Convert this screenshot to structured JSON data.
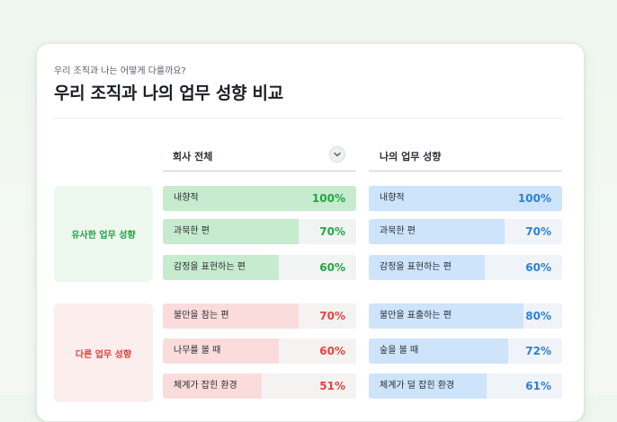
{
  "header": {
    "subtitle": "우리 조직과 나는 어떻게 다를까요?",
    "title": "우리 조직과 나의 업무 성향 비교"
  },
  "columns": {
    "company": "회사 전체",
    "mine": "나의 업무 성향"
  },
  "groups": {
    "similar": "유사한 업무 성향",
    "different": "다른 업무 성향"
  },
  "colors": {
    "green": "#22a546",
    "blue": "#2f7fd6",
    "red": "#e4443f"
  },
  "rows": {
    "similar_company": [
      {
        "label": "내향적",
        "pct": "100%",
        "value": 100
      },
      {
        "label": "과묵한 편",
        "pct": "70%",
        "value": 70
      },
      {
        "label": "감정을 표현하는 편",
        "pct": "60%",
        "value": 60
      }
    ],
    "similar_mine": [
      {
        "label": "내향적",
        "pct": "100%",
        "value": 100
      },
      {
        "label": "과묵한 편",
        "pct": "70%",
        "value": 70
      },
      {
        "label": "감정을 표현하는 편",
        "pct": "60%",
        "value": 60
      }
    ],
    "diff_company": [
      {
        "label": "불만을 참는 편",
        "pct": "70%",
        "value": 70
      },
      {
        "label": "나무를 볼 때",
        "pct": "60%",
        "value": 60
      },
      {
        "label": "체계가 잡힌 환경",
        "pct": "51%",
        "value": 51
      }
    ],
    "diff_mine": [
      {
        "label": "불만을 표출하는 편",
        "pct": "80%",
        "value": 80
      },
      {
        "label": "숲을 볼 때",
        "pct": "72%",
        "value": 72
      },
      {
        "label": "체계가 덜 잡힌 환경",
        "pct": "61%",
        "value": 61
      }
    ]
  }
}
